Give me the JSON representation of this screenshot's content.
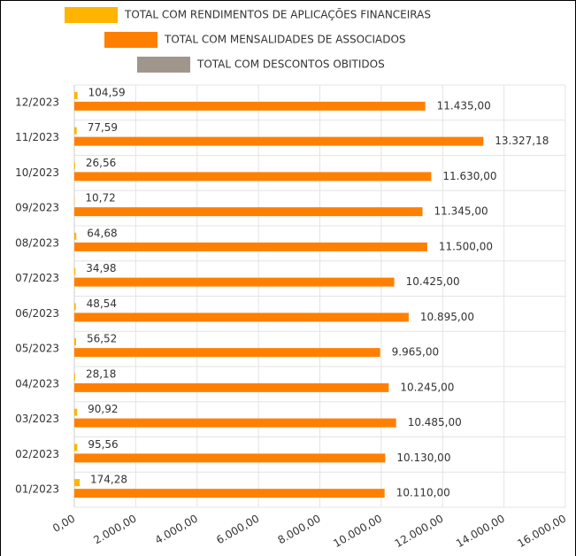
{
  "chart_data": {
    "type": "bar",
    "orientation": "horizontal",
    "categories": [
      "01/2023",
      "02/2023",
      "03/2023",
      "04/2023",
      "05/2023",
      "06/2023",
      "07/2023",
      "08/2023",
      "09/2023",
      "10/2023",
      "11/2023",
      "12/2023"
    ],
    "series": [
      {
        "name": "TOTAL COM RENDIMENTOS DE APLICAÇÕES FINANCEIRAS",
        "color": "#ffb400",
        "values": [
          174.28,
          95.56,
          90.92,
          28.18,
          56.52,
          48.54,
          34.98,
          64.68,
          10.72,
          26.56,
          77.59,
          104.59
        ],
        "value_labels": [
          "174,28",
          "95,56",
          "90,92",
          "28,18",
          "56,52",
          "48,54",
          "34,98",
          "64,68",
          "10,72",
          "26,56",
          "77,59",
          "104,59"
        ]
      },
      {
        "name": "TOTAL COM MENSALIDADES DE ASSOCIADOS",
        "color": "#ff8000",
        "values": [
          10110,
          10130,
          10485,
          10245,
          9965,
          10895,
          10425,
          11500,
          11345,
          11630,
          13327.18,
          11435
        ],
        "value_labels": [
          "10.110,00",
          "10.130,00",
          "10.485,00",
          "10.245,00",
          "9.965,00",
          "10.895,00",
          "10.425,00",
          "11.500,00",
          "11.345,00",
          "11.630,00",
          "13.327,18",
          "11.435,00"
        ]
      },
      {
        "name": "TOTAL COM DESCONTOS OBITIDOS",
        "color": "#a0968c",
        "values": [
          null,
          null,
          null,
          null,
          null,
          null,
          null,
          null,
          null,
          null,
          null,
          null
        ]
      }
    ],
    "xlim": [
      0,
      16000
    ],
    "xticks": [
      {
        "value": 0,
        "label": "0,00"
      },
      {
        "value": 2000,
        "label": "2.000,00"
      },
      {
        "value": 4000,
        "label": "4.000,00"
      },
      {
        "value": 6000,
        "label": "6.000,00"
      },
      {
        "value": 8000,
        "label": "8.000,00"
      },
      {
        "value": 10000,
        "label": "10.000,00"
      },
      {
        "value": 12000,
        "label": "12.000,00"
      },
      {
        "value": 14000,
        "label": "14.000,00"
      },
      {
        "value": 16000,
        "label": "16.000,00"
      }
    ],
    "grid": true
  }
}
